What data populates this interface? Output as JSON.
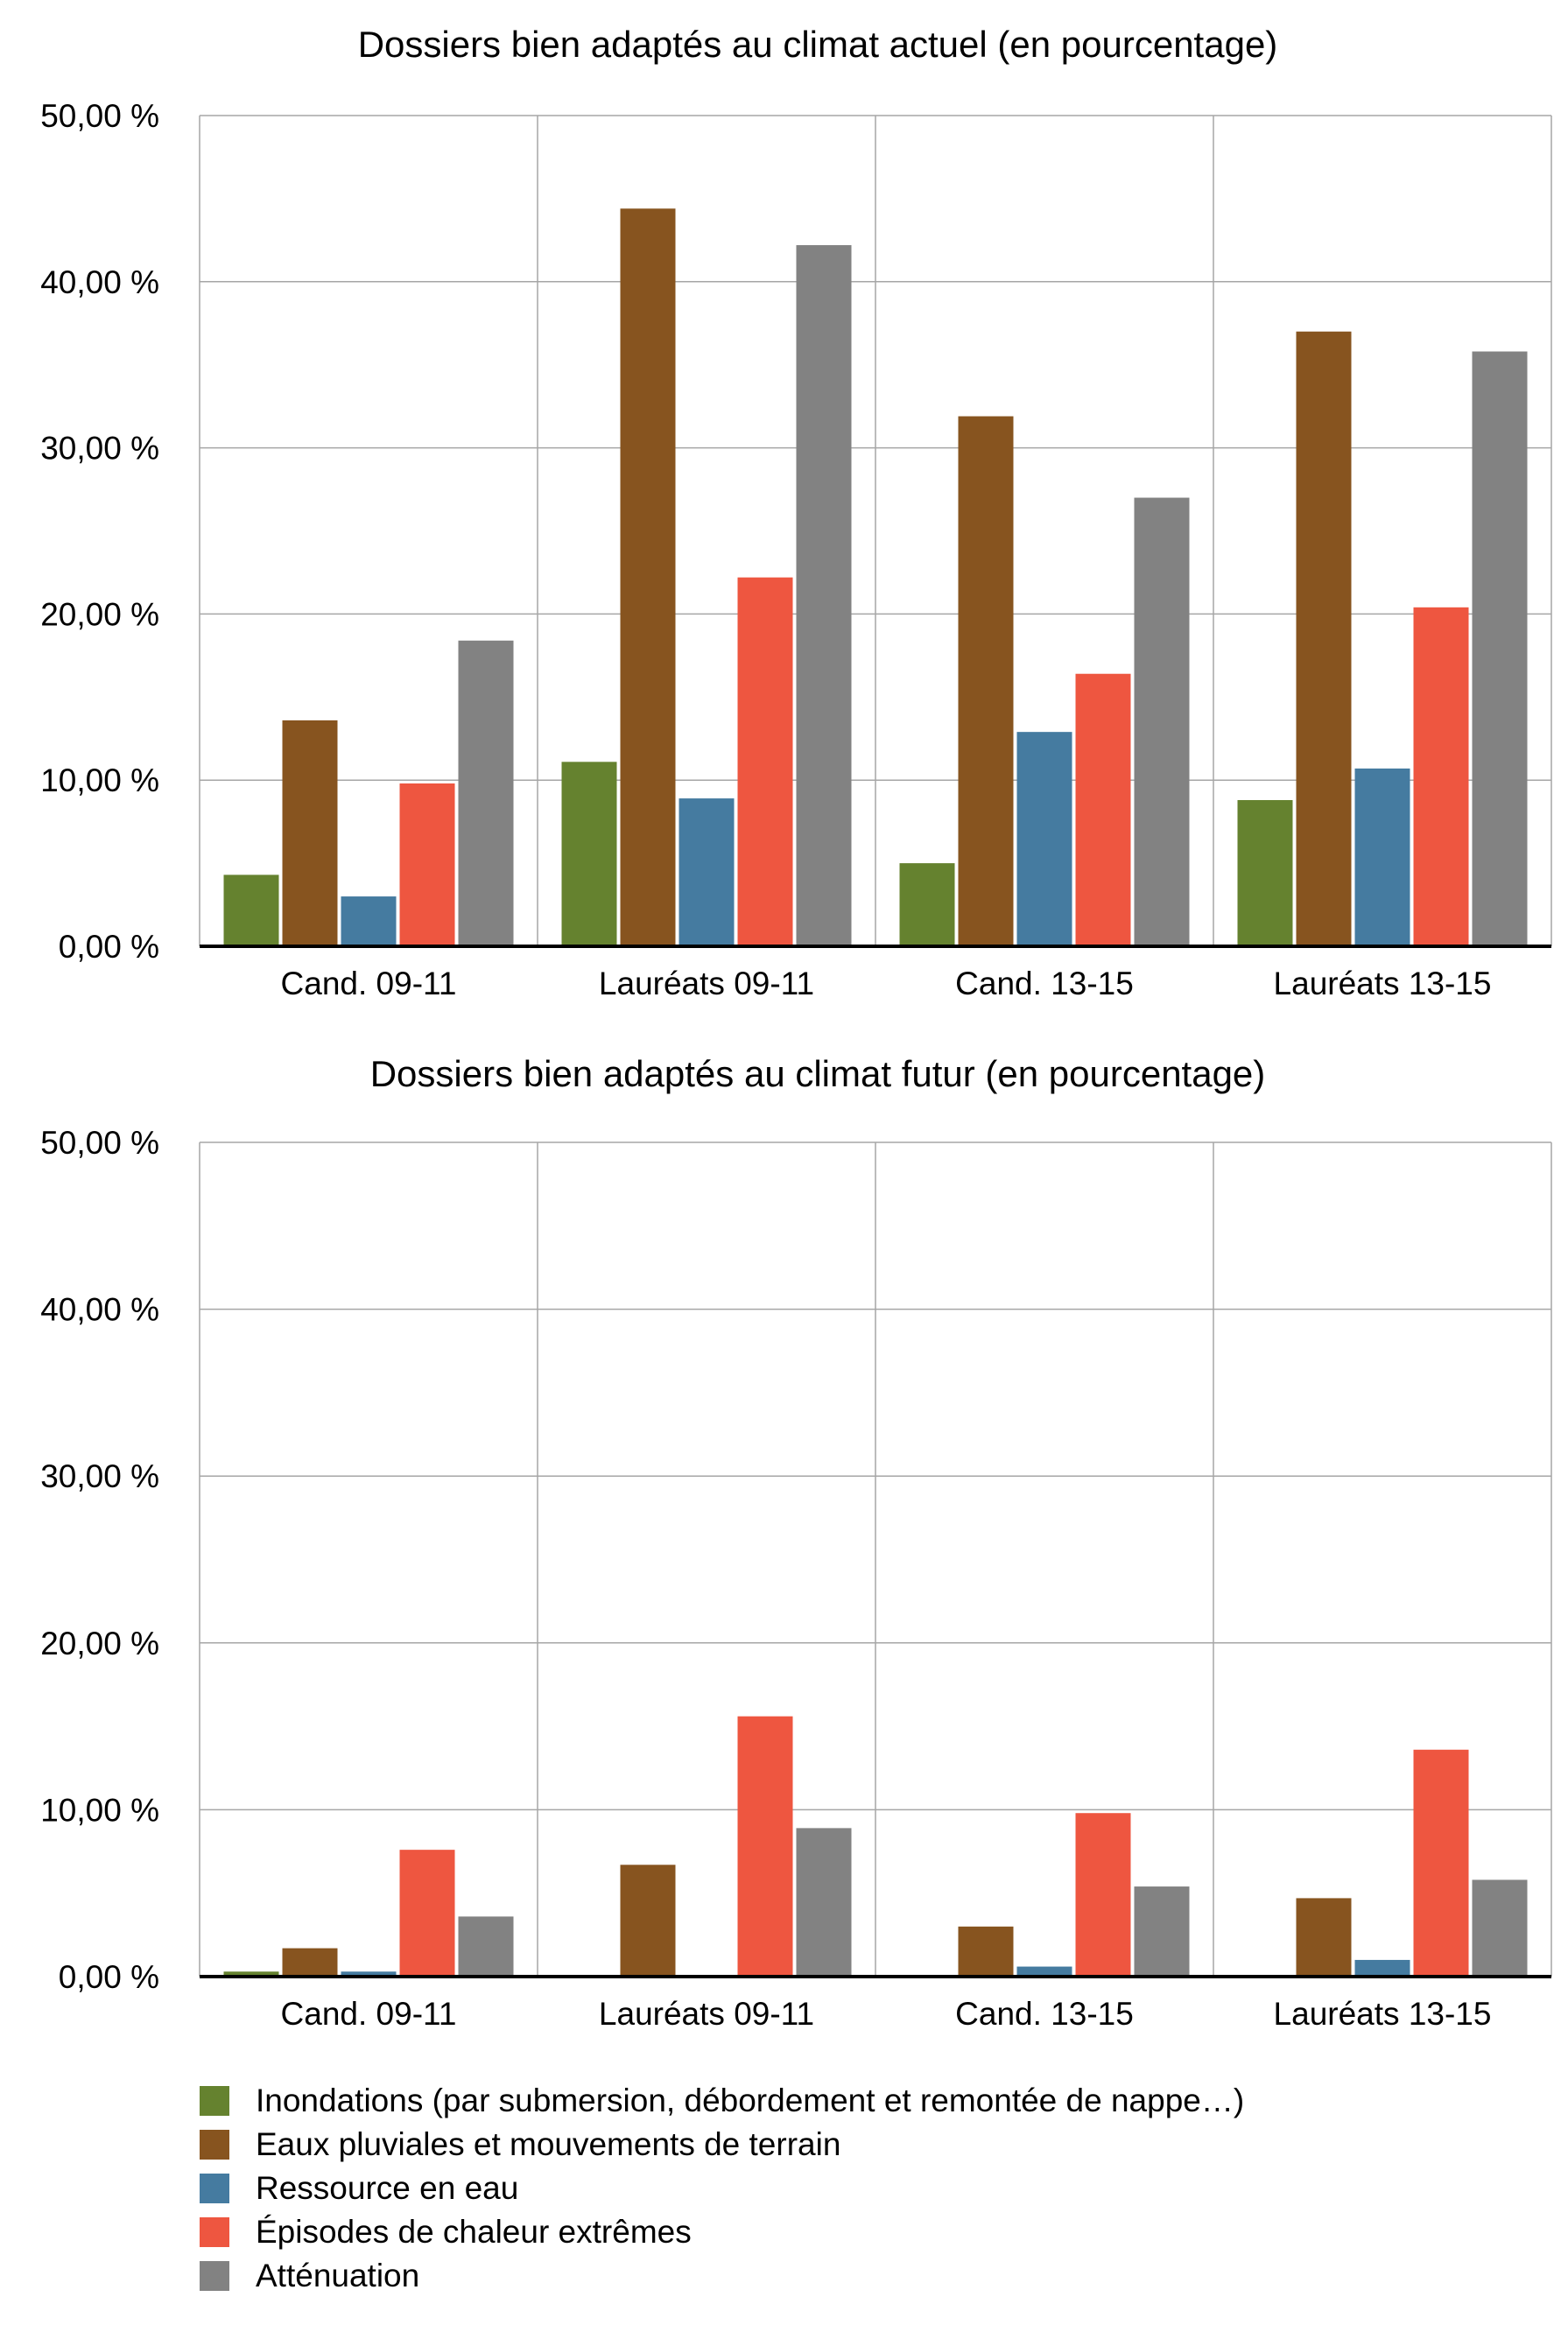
{
  "legend": {
    "items": [
      {
        "label": "Inondations (par submersion, débordement et remontée de nappe…)",
        "color": "#65822f"
      },
      {
        "label": "Eaux pluviales et mouvements de terrain",
        "color": "#87541f"
      },
      {
        "label": "Ressource en eau",
        "color": "#457ba0"
      },
      {
        "label": "Épisodes de chaleur extrêmes",
        "color": "#ee5640"
      },
      {
        "label": "Atténuation",
        "color": "#828282"
      }
    ]
  },
  "chart_data": [
    {
      "type": "bar",
      "title": "Dossiers bien adaptés au climat actuel (en pourcentage)",
      "xlabel": "",
      "ylabel": "",
      "ylim": [
        0,
        50
      ],
      "yticks": [
        "0,00 %",
        "10,00 %",
        "20,00 %",
        "30,00 %",
        "40,00 %",
        "50,00 %"
      ],
      "grid": true,
      "legend_position": "bottom",
      "categories": [
        "Cand. 09-11",
        "Lauréats 09-11",
        "Cand. 13-15",
        "Lauréats 13-15"
      ],
      "series": [
        {
          "name": "Inondations (par submersion, débordement et remontée de nappe…)",
          "color": "#65822f",
          "values": [
            4.3,
            11.1,
            5.0,
            8.8
          ]
        },
        {
          "name": "Eaux pluviales et mouvements de terrain",
          "color": "#87541f",
          "values": [
            13.6,
            44.4,
            31.9,
            37.0
          ]
        },
        {
          "name": "Ressource en eau",
          "color": "#457ba0",
          "values": [
            3.0,
            8.9,
            12.9,
            10.7
          ]
        },
        {
          "name": "Épisodes de chaleur extrêmes",
          "color": "#ee5640",
          "values": [
            9.8,
            22.2,
            16.4,
            20.4
          ]
        },
        {
          "name": "Atténuation",
          "color": "#828282",
          "values": [
            18.4,
            42.2,
            27.0,
            35.8
          ]
        }
      ]
    },
    {
      "type": "bar",
      "title": "Dossiers bien adaptés au climat futur (en pourcentage)",
      "xlabel": "",
      "ylabel": "",
      "ylim": [
        0,
        50
      ],
      "yticks": [
        "0,00 %",
        "10,00 %",
        "20,00 %",
        "30,00 %",
        "40,00 %",
        "50,00 %"
      ],
      "grid": true,
      "legend_position": "bottom",
      "categories": [
        "Cand. 09-11",
        "Lauréats 09-11",
        "Cand. 13-15",
        "Lauréats 13-15"
      ],
      "series": [
        {
          "name": "Inondations (par submersion, débordement et remontée de nappe…)",
          "color": "#65822f",
          "values": [
            0.3,
            0,
            0,
            0
          ]
        },
        {
          "name": "Eaux pluviales et mouvements de terrain",
          "color": "#87541f",
          "values": [
            1.7,
            6.7,
            3.0,
            4.7
          ]
        },
        {
          "name": "Ressource en eau",
          "color": "#457ba0",
          "values": [
            0.3,
            0,
            0.6,
            1.0
          ]
        },
        {
          "name": "Épisodes de chaleur extrêmes",
          "color": "#ee5640",
          "values": [
            7.6,
            15.6,
            9.8,
            13.6
          ]
        },
        {
          "name": "Atténuation",
          "color": "#828282",
          "values": [
            3.6,
            8.9,
            5.4,
            5.8
          ]
        }
      ]
    }
  ]
}
